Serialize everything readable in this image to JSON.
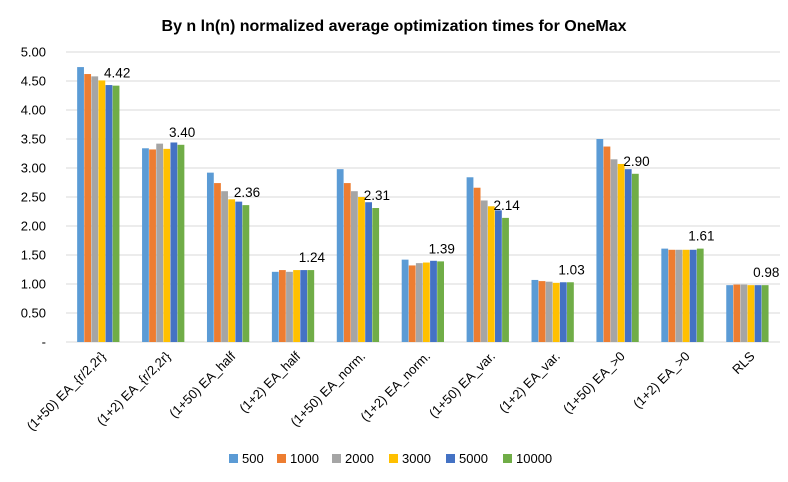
{
  "chart_data": {
    "type": "bar",
    "title": "By n ln(n) normalized average optimization times for OneMax",
    "xlabel": "",
    "ylabel": "",
    "ylim": [
      0,
      5
    ],
    "y_ticks": [
      "-",
      "0.50",
      "1.00",
      "1.50",
      "2.00",
      "2.50",
      "3.00",
      "3.50",
      "4.00",
      "4.50",
      "5.00"
    ],
    "y_tick_values": [
      0,
      0.5,
      1.0,
      1.5,
      2.0,
      2.5,
      3.0,
      3.5,
      4.0,
      4.5,
      5.0
    ],
    "grid": true,
    "legend_position": "bottom",
    "categories": [
      "(1+50) EA_{r/2,2r}",
      "(1+2) EA_{r/2,2r}",
      "(1+50) EA_half",
      "(1+2) EA_half",
      "(1+50) EA_norm.",
      "(1+2) EA_norm.",
      "(1+50) EA_var.",
      "(1+2) EA_var.",
      "(1+50) EA_>0",
      "(1+2) EA_>0",
      "RLS"
    ],
    "series": [
      {
        "name": "500",
        "color": "#5B9BD5",
        "values": [
          4.74,
          3.34,
          2.92,
          1.21,
          2.98,
          1.42,
          2.84,
          1.07,
          3.5,
          1.61,
          0.98
        ]
      },
      {
        "name": "1000",
        "color": "#ED7D31",
        "values": [
          4.62,
          3.32,
          2.74,
          1.24,
          2.74,
          1.32,
          2.66,
          1.05,
          3.37,
          1.59,
          0.99
        ]
      },
      {
        "name": "2000",
        "color": "#A5A5A5",
        "values": [
          4.58,
          3.42,
          2.6,
          1.21,
          2.6,
          1.36,
          2.44,
          1.04,
          3.15,
          1.59,
          0.99
        ]
      },
      {
        "name": "3000",
        "color": "#FFC000",
        "values": [
          4.51,
          3.33,
          2.46,
          1.24,
          2.5,
          1.37,
          2.34,
          1.02,
          3.07,
          1.59,
          0.98
        ]
      },
      {
        "name": "5000",
        "color": "#4472C4",
        "values": [
          4.43,
          3.44,
          2.42,
          1.24,
          2.41,
          1.4,
          2.27,
          1.03,
          2.98,
          1.59,
          0.98
        ]
      },
      {
        "name": "10000",
        "color": "#70AD47",
        "values": [
          4.42,
          3.4,
          2.36,
          1.24,
          2.31,
          1.39,
          2.14,
          1.03,
          2.9,
          1.61,
          0.98
        ]
      }
    ],
    "data_labels": {
      "series": "10000",
      "texts": [
        "4.42",
        "3.40",
        "2.36",
        "1.24",
        "2.31",
        "1.39",
        "2.14",
        "1.03",
        "2.90",
        "1.61",
        "0.98"
      ]
    }
  }
}
